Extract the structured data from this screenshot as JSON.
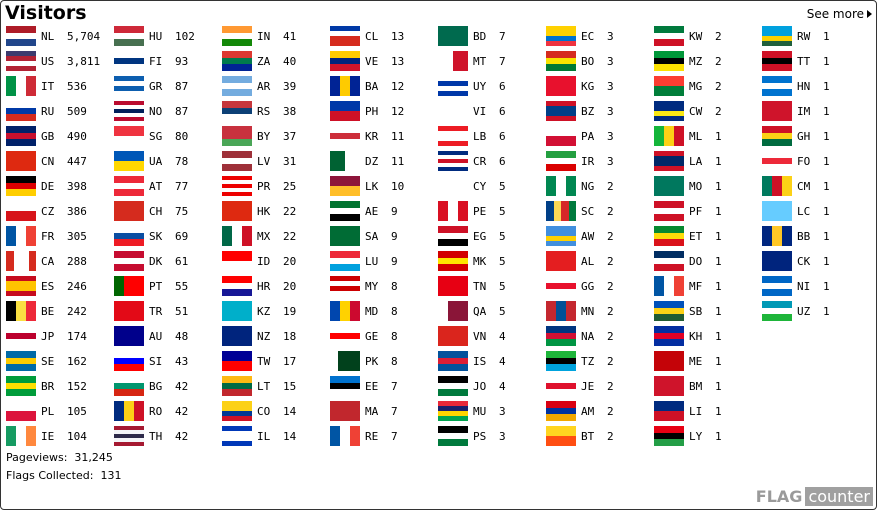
{
  "header": {
    "title": "Visitors",
    "see_more": "See more"
  },
  "columns": [
    [
      [
        "NL",
        "5,704"
      ],
      [
        "US",
        "3,811"
      ],
      [
        "IT",
        "536"
      ],
      [
        "RU",
        "509"
      ],
      [
        "GB",
        "490"
      ],
      [
        "CN",
        "447"
      ],
      [
        "DE",
        "398"
      ],
      [
        "CZ",
        "386"
      ],
      [
        "FR",
        "305"
      ],
      [
        "CA",
        "288"
      ],
      [
        "ES",
        "246"
      ],
      [
        "BE",
        "242"
      ],
      [
        "JP",
        "174"
      ],
      [
        "SE",
        "162"
      ],
      [
        "BR",
        "152"
      ],
      [
        "PL",
        "105"
      ],
      [
        "IE",
        "104"
      ]
    ],
    [
      [
        "HU",
        "102"
      ],
      [
        "FI",
        "93"
      ],
      [
        "GR",
        "87"
      ],
      [
        "NO",
        "87"
      ],
      [
        "SG",
        "80"
      ],
      [
        "UA",
        "78"
      ],
      [
        "AT",
        "77"
      ],
      [
        "CH",
        "75"
      ],
      [
        "SK",
        "69"
      ],
      [
        "DK",
        "61"
      ],
      [
        "PT",
        "55"
      ],
      [
        "TR",
        "51"
      ],
      [
        "AU",
        "48"
      ],
      [
        "SI",
        "43"
      ],
      [
        "BG",
        "42"
      ],
      [
        "RO",
        "42"
      ],
      [
        "TH",
        "42"
      ]
    ],
    [
      [
        "IN",
        "41"
      ],
      [
        "ZA",
        "40"
      ],
      [
        "AR",
        "39"
      ],
      [
        "RS",
        "38"
      ],
      [
        "BY",
        "37"
      ],
      [
        "LV",
        "31"
      ],
      [
        "PR",
        "25"
      ],
      [
        "HK",
        "22"
      ],
      [
        "MX",
        "22"
      ],
      [
        "ID",
        "20"
      ],
      [
        "HR",
        "20"
      ],
      [
        "KZ",
        "19"
      ],
      [
        "NZ",
        "18"
      ],
      [
        "TW",
        "17"
      ],
      [
        "LT",
        "15"
      ],
      [
        "CO",
        "14"
      ],
      [
        "IL",
        "14"
      ]
    ],
    [
      [
        "CL",
        "13"
      ],
      [
        "VE",
        "13"
      ],
      [
        "BA",
        "12"
      ],
      [
        "PH",
        "12"
      ],
      [
        "KR",
        "11"
      ],
      [
        "DZ",
        "11"
      ],
      [
        "LK",
        "10"
      ],
      [
        "AE",
        "9"
      ],
      [
        "SA",
        "9"
      ],
      [
        "LU",
        "9"
      ],
      [
        "MY",
        "8"
      ],
      [
        "MD",
        "8"
      ],
      [
        "GE",
        "8"
      ],
      [
        "PK",
        "8"
      ],
      [
        "EE",
        "7"
      ],
      [
        "MA",
        "7"
      ],
      [
        "RE",
        "7"
      ]
    ],
    [
      [
        "BD",
        "7"
      ],
      [
        "MT",
        "7"
      ],
      [
        "UY",
        "6"
      ],
      [
        "VI",
        "6"
      ],
      [
        "LB",
        "6"
      ],
      [
        "CR",
        "6"
      ],
      [
        "CY",
        "5"
      ],
      [
        "PE",
        "5"
      ],
      [
        "EG",
        "5"
      ],
      [
        "MK",
        "5"
      ],
      [
        "TN",
        "5"
      ],
      [
        "QA",
        "5"
      ],
      [
        "VN",
        "4"
      ],
      [
        "IS",
        "4"
      ],
      [
        "JO",
        "4"
      ],
      [
        "MU",
        "3"
      ],
      [
        "PS",
        "3"
      ]
    ],
    [
      [
        "EC",
        "3"
      ],
      [
        "BO",
        "3"
      ],
      [
        "KG",
        "3"
      ],
      [
        "BZ",
        "3"
      ],
      [
        "PA",
        "3"
      ],
      [
        "IR",
        "3"
      ],
      [
        "NG",
        "2"
      ],
      [
        "SC",
        "2"
      ],
      [
        "AW",
        "2"
      ],
      [
        "AL",
        "2"
      ],
      [
        "GG",
        "2"
      ],
      [
        "MN",
        "2"
      ],
      [
        "NA",
        "2"
      ],
      [
        "TZ",
        "2"
      ],
      [
        "JE",
        "2"
      ],
      [
        "AM",
        "2"
      ],
      [
        "BT",
        "2"
      ]
    ],
    [
      [
        "KW",
        "2"
      ],
      [
        "MZ",
        "2"
      ],
      [
        "MG",
        "2"
      ],
      [
        "CW",
        "2"
      ],
      [
        "ML",
        "1"
      ],
      [
        "LA",
        "1"
      ],
      [
        "MO",
        "1"
      ],
      [
        "PF",
        "1"
      ],
      [
        "ET",
        "1"
      ],
      [
        "DO",
        "1"
      ],
      [
        "MF",
        "1"
      ],
      [
        "SB",
        "1"
      ],
      [
        "KH",
        "1"
      ],
      [
        "ME",
        "1"
      ],
      [
        "BM",
        "1"
      ],
      [
        "LI",
        "1"
      ],
      [
        "LY",
        "1"
      ]
    ],
    [
      [
        "RW",
        "1"
      ],
      [
        "TT",
        "1"
      ],
      [
        "HN",
        "1"
      ],
      [
        "IM",
        "1"
      ],
      [
        "GH",
        "1"
      ],
      [
        "FO",
        "1"
      ],
      [
        "CM",
        "1"
      ],
      [
        "LC",
        "1"
      ],
      [
        "BB",
        "1"
      ],
      [
        "CK",
        "1"
      ],
      [
        "NI",
        "1"
      ],
      [
        "UZ",
        "1"
      ]
    ]
  ],
  "flag_colors": {
    "NL": "h:#ae1c28,#fff,#21468b",
    "US": "h:#3c3b6e,#b22234,#fff,#b22234",
    "IT": "v:#009246,#fff,#ce2b37",
    "RU": "h:#fff,#0039a6,#d52b1e",
    "GB": "h:#012169,#c8102e,#012169",
    "CN": "h:#de2910",
    "DE": "h:#000,#dd0000,#ffce00",
    "CZ": "h:#fff,#d7141a",
    "FR": "v:#0055a4,#fff,#ef4135",
    "CA": "v:#d52b1e,#fff,#fff,#d52b1e",
    "ES": "h:#c60b1e,#ffc400,#ffc400,#c60b1e",
    "BE": "v:#000,#fae042,#ed2939",
    "JP": "h:#fff,#bc002d,#fff",
    "SE": "h:#006aa7,#fecc00,#006aa7",
    "BR": "h:#009c3b,#ffdf00,#009c3b",
    "PL": "h:#fff,#dc143c",
    "IE": "v:#169b62,#fff,#ff883e",
    "HU": "h:#ce2939,#fff,#477050",
    "FI": "h:#fff,#003580,#fff",
    "GR": "h:#0d5eaf,#fff,#0d5eaf,#fff",
    "NO": "h:#ba0c2f,#fff,#00205b,#fff,#ba0c2f",
    "SG": "h:#ef3340,#fff",
    "UA": "h:#0057b7,#ffd700",
    "AT": "h:#ed2939,#fff,#ed2939",
    "CH": "h:#d52b1e",
    "SK": "h:#fff,#0b4ea2,#ee1c25",
    "DK": "h:#c60c30,#fff,#c60c30",
    "PT": "v:#006600,#ff0000,#ff0000",
    "TR": "h:#e30a17",
    "AU": "h:#00008b",
    "SI": "h:#fff,#0000ff,#ff0000",
    "BG": "h:#fff,#00966e,#d62612",
    "RO": "v:#002b7f,#fcd116,#ce1126",
    "TH": "h:#a51931,#f4f5f8,#2d2a4a,#f4f5f8,#a51931",
    "IN": "h:#ff9933,#fff,#138808",
    "ZA": "h:#de3831,#007a4d,#002395",
    "AR": "h:#74acdf,#fff,#74acdf",
    "RS": "h:#c6363c,#0c4076,#fff",
    "BY": "h:#c8313e,#c8313e,#4aa657",
    "LV": "h:#9e3039,#fff,#9e3039",
    "PR": "h:#ed0000,#fff,#ed0000,#fff,#ed0000",
    "HK": "h:#de2910",
    "MX": "v:#006847,#fff,#ce1126",
    "ID": "h:#ff0000,#fff",
    "HR": "h:#ff0000,#fff,#171796",
    "KZ": "h:#00afca",
    "NZ": "h:#00247d",
    "TW": "h:#000095,#fe0000",
    "LT": "h:#fdb913,#006a44,#c1272d",
    "CO": "h:#fcd116,#fcd116,#003893,#ce1126",
    "IL": "h:#0038b8,#fff,#fff,#0038b8",
    "CL": "h:#0039a6,#fff,#d52b1e,#d52b1e",
    "VE": "h:#ffcc00,#00247d,#cf142b",
    "BA": "v:#002395,#fecb00,#002395",
    "PH": "h:#0038a8,#ce1126",
    "KR": "h:#fff,#cd2e3a,#fff",
    "DZ": "v:#006233,#fff",
    "LK": "h:#8d153a,#ffbe29",
    "AE": "h:#00732f,#fff,#000",
    "SA": "h:#006c35",
    "LU": "h:#ed2939,#fff,#00a1de",
    "MY": "h:#cc0001,#fff,#cc0001,#fff",
    "MD": "v:#0046ae,#ffd200,#cc092f",
    "GE": "h:#fff,#ff0000,#fff",
    "PK": "v:#fff,#01411c,#01411c,#01411c",
    "EE": "h:#0072ce,#000,#fff",
    "MA": "h:#c1272d",
    "RE": "v:#0055a4,#fff,#ef4135",
    "BD": "h:#006a4e",
    "MT": "v:#fff,#cf142b",
    "UY": "h:#fff,#0038a8,#fff,#0038a8",
    "VI": "h:#fff",
    "LB": "h:#ed1c24,#fff,#fff,#ed1c24",
    "CR": "h:#002b7f,#fff,#ce1126,#fff,#002b7f",
    "CY": "h:#fff",
    "PE": "v:#d91023,#fff,#d91023",
    "EG": "h:#ce1126,#fff,#000",
    "MK": "h:#d20000,#ffe600,#d20000",
    "TN": "h:#e70013",
    "QA": "v:#fff,#8a1538,#8a1538",
    "VN": "h:#da251d",
    "IS": "h:#02529c,#dc1e35,#02529c",
    "JO": "h:#000,#fff,#007a3d",
    "MU": "h:#ea2839,#1a206d,#ffd500,#00a551",
    "PS": "h:#000,#fff,#007a3d",
    "EC": "h:#ffd100,#ffd100,#0072ce,#ef3340",
    "BO": "h:#d52b1e,#f9e300,#007934",
    "KG": "h:#e8112d",
    "BZ": "h:#ce1126,#003f87,#003f87,#ce1126",
    "PA": "h:#fff,#d21034",
    "IR": "h:#239f40,#fff,#da0000",
    "NG": "v:#008751,#fff,#008751",
    "SC": "v:#003f87,#fcd856,#d62828,#007a3d",
    "AW": "h:#418fde,#418fde,#ffd100,#418fde",
    "AL": "h:#e41e20",
    "GG": "h:#fff,#e8112d,#fff",
    "MN": "v:#c4272f,#015197,#c4272f",
    "NA": "h:#003580,#d21034,#009543",
    "TZ": "h:#1eb53a,#000,#00a3dd",
    "JE": "h:#fff,#df112d,#fff",
    "AM": "h:#d90012,#0033a0,#f2a800",
    "BT": "h:#ffd520,#ff4e12",
    "KW": "h:#007a3d,#fff,#ce1126",
    "MZ": "h:#009739,#000,#fce100",
    "MG": "h:#fc3d32,#007e3a",
    "CW": "h:#002b7f,#002b7f,#f9e814,#002b7f",
    "ML": "v:#14b53a,#fcd116,#ce1126",
    "LA": "h:#ce1126,#002868,#002868,#ce1126",
    "MO": "h:#00785e",
    "PF": "h:#ce1126,#fff,#ce1126",
    "ET": "h:#078930,#fcdd09,#da121a",
    "DO": "h:#002d62,#fff,#ce1126",
    "MF": "v:#0055a4,#fff,#ef4135",
    "SB": "h:#0051ba,#fcd116,#215b33",
    "KH": "h:#032ea1,#e00025,#032ea1",
    "ME": "h:#c40308",
    "BM": "h:#cf142b",
    "LI": "h:#002b7f,#ce1126",
    "LY": "h:#e70013,#000,#239e46",
    "RW": "h:#00a1de,#00a1de,#fad201,#20603d",
    "TT": "h:#ce1126,#000,#ce1126",
    "HN": "h:#0073cf,#fff,#0073cf",
    "IM": "h:#cf142b",
    "GH": "h:#ce1126,#fcd116,#006b3f",
    "FO": "h:#fff,#ed2939,#fff",
    "CM": "v:#007a5e,#ce1126,#fcd116",
    "LC": "h:#66ccff",
    "BB": "v:#00267f,#ffc726,#00267f",
    "CK": "h:#00247d",
    "NI": "h:#0067c6,#fff,#0067c6",
    "UZ": "h:#0099b5,#fff,#1eb53a"
  },
  "footer": {
    "pageviews_label": "Pageviews:",
    "pageviews": "31,245",
    "flags_label": "Flags Collected:",
    "flags": "131",
    "logo_flag": "FLAG",
    "logo_counter": "counter"
  }
}
